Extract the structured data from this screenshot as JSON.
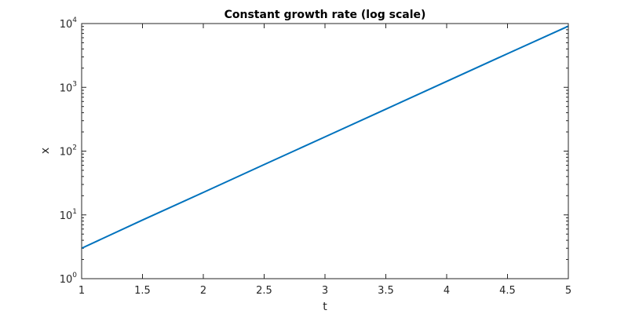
{
  "chart_data": {
    "type": "line",
    "title": "Constant growth rate (log scale)",
    "xlabel": "t",
    "ylabel": "x",
    "xlim": [
      1,
      5
    ],
    "ylim": [
      1,
      10000
    ],
    "yscale": "log",
    "grid": false,
    "x_ticks": [
      1,
      1.5,
      2,
      2.5,
      3,
      3.5,
      4,
      4.5,
      5
    ],
    "x_tick_labels": [
      "1",
      "1.5",
      "2",
      "2.5",
      "3",
      "3.5",
      "4",
      "4.5",
      "5"
    ],
    "y_ticks": [
      1,
      10,
      100,
      1000,
      10000
    ],
    "y_tick_labels": [
      {
        "base": "10",
        "exp": "0"
      },
      {
        "base": "10",
        "exp": "1"
      },
      {
        "base": "10",
        "exp": "2"
      },
      {
        "base": "10",
        "exp": "3"
      },
      {
        "base": "10",
        "exp": "4"
      }
    ],
    "line_color": "#0072bd",
    "series": [
      {
        "x": [
          1,
          1.5,
          2,
          2.5,
          3,
          3.5,
          4,
          4.5,
          5
        ],
        "values": [
          3.0,
          8.3,
          22.5,
          61.5,
          167.0,
          455.0,
          1240.0,
          3370.0,
          9100.0
        ]
      }
    ]
  }
}
